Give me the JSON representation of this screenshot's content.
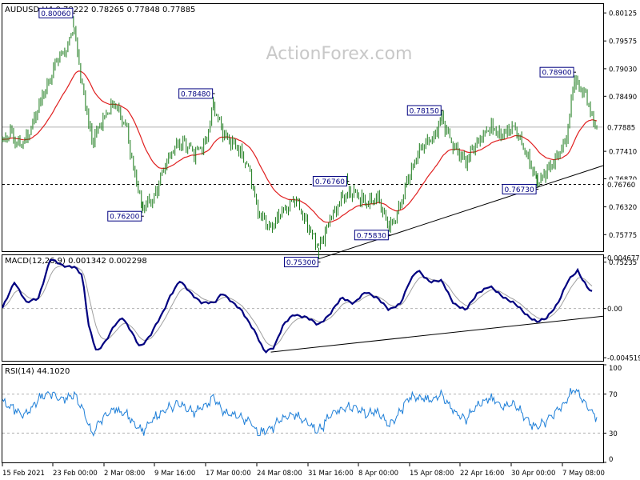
{
  "watermark": "ActionForex.com",
  "chart_data": [
    {
      "type": "candlestick",
      "panel": "price",
      "header": "AUDUSD,H4  0.78222 0.78265 0.77848 0.77885",
      "symbol": "AUDUSD",
      "timeframe": "H4",
      "ohlc_last": {
        "open": 0.78222,
        "high": 0.78265,
        "low": 0.77848,
        "close": 0.77885
      },
      "ylim": [
        0.7545,
        0.803
      ],
      "y_ticks": [
        "0.80125",
        "0.79575",
        "0.79030",
        "0.78490",
        "0.77410",
        "0.76870",
        "0.76320",
        "0.75775",
        "0.75235"
      ],
      "current_price": {
        "value": 0.77885,
        "label": "0.77885"
      },
      "support_level": {
        "value": 0.7676,
        "label": "0.76760"
      },
      "x_labels": [
        "15 Feb 2021",
        "23 Feb 00:00",
        "2 Mar 08:00",
        "9 Mar 16:00",
        "17 Mar 00:00",
        "24 Mar 08:00",
        "31 Mar 16:00",
        "8 Apr 00:00",
        "15 Apr 08:00",
        "22 Apr 16:00",
        "30 Apr 00:00",
        "7 May 08:00"
      ],
      "annotations": [
        {
          "label": "0.80060",
          "value": 0.8006,
          "bar": 89
        },
        {
          "label": "0.78480",
          "value": 0.7848,
          "bar": 264
        },
        {
          "label": "0.76200",
          "value": 0.762,
          "bar": 175
        },
        {
          "label": "0.76760",
          "value": 0.7676,
          "bar": 432
        },
        {
          "label": "0.78150",
          "value": 0.7815,
          "bar": 550
        },
        {
          "label": "0.75830",
          "value": 0.7583,
          "bar": 484
        },
        {
          "label": "0.75300",
          "value": 0.753,
          "bar": 396
        },
        {
          "label": "0.76730",
          "value": 0.7673,
          "bar": 669
        },
        {
          "label": "0.78900",
          "value": 0.789,
          "bar": 716
        }
      ],
      "trendline": {
        "from": {
          "bar": 396,
          "value": 0.753
        },
        "to": {
          "bar": 752,
          "value": 0.7713
        }
      },
      "ma_line": {
        "color": "#e02020"
      },
      "anchors": [
        [
          0,
          0.776
        ],
        [
          10,
          0.778
        ],
        [
          22,
          0.775
        ],
        [
          32,
          0.777
        ],
        [
          48,
          0.784
        ],
        [
          58,
          0.788
        ],
        [
          68,
          0.792
        ],
        [
          80,
          0.794
        ],
        [
          89,
          0.799
        ],
        [
          100,
          0.787
        ],
        [
          112,
          0.776
        ],
        [
          125,
          0.78
        ],
        [
          140,
          0.7835
        ],
        [
          155,
          0.779
        ],
        [
          165,
          0.77
        ],
        [
          175,
          0.763
        ],
        [
          190,
          0.765
        ],
        [
          205,
          0.772
        ],
        [
          220,
          0.776
        ],
        [
          240,
          0.774
        ],
        [
          255,
          0.776
        ],
        [
          264,
          0.783
        ],
        [
          278,
          0.777
        ],
        [
          295,
          0.775
        ],
        [
          310,
          0.77
        ],
        [
          320,
          0.762
        ],
        [
          335,
          0.759
        ],
        [
          350,
          0.762
        ],
        [
          365,
          0.765
        ],
        [
          380,
          0.76
        ],
        [
          396,
          0.755
        ],
        [
          410,
          0.761
        ],
        [
          425,
          0.765
        ],
        [
          440,
          0.766
        ],
        [
          455,
          0.764
        ],
        [
          470,
          0.765
        ],
        [
          484,
          0.759
        ],
        [
          495,
          0.762
        ],
        [
          510,
          0.77
        ],
        [
          525,
          0.775
        ],
        [
          540,
          0.777
        ],
        [
          550,
          0.7805
        ],
        [
          565,
          0.775
        ],
        [
          580,
          0.772
        ],
        [
          595,
          0.776
        ],
        [
          610,
          0.779
        ],
        [
          625,
          0.777
        ],
        [
          640,
          0.779
        ],
        [
          655,
          0.774
        ],
        [
          669,
          0.768
        ],
        [
          690,
          0.772
        ],
        [
          705,
          0.776
        ],
        [
          716,
          0.788
        ],
        [
          730,
          0.785
        ],
        [
          740,
          0.78
        ],
        [
          745,
          0.7788
        ]
      ]
    },
    {
      "type": "line",
      "panel": "macd",
      "header": "MACD(12,26,9) 0.001342 0.002298",
      "values_last": {
        "macd": 0.001342,
        "signal": 0.002298
      },
      "ylim": [
        -0.0048,
        0.0049
      ],
      "y_ticks": [
        "0.004677",
        "0.00",
        "-0.004519"
      ],
      "zero_label": "0.00",
      "trendline": {
        "from": {
          "bar": 336,
          "value": -0.004
        },
        "to": {
          "bar": 752,
          "value": -0.0007
        }
      },
      "series_colors": {
        "macd": "#000080",
        "signal": "#a0a0a0"
      },
      "anchors": [
        [
          0,
          0.0
        ],
        [
          15,
          0.0025
        ],
        [
          30,
          0.0005
        ],
        [
          45,
          0.001
        ],
        [
          60,
          0.0045
        ],
        [
          75,
          0.004
        ],
        [
          90,
          0.0038
        ],
        [
          100,
          0.003
        ],
        [
          108,
          -0.0015
        ],
        [
          118,
          -0.004
        ],
        [
          130,
          -0.003
        ],
        [
          140,
          -0.0015
        ],
        [
          150,
          -0.0008
        ],
        [
          160,
          -0.002
        ],
        [
          172,
          -0.0035
        ],
        [
          185,
          -0.0025
        ],
        [
          200,
          -0.0005
        ],
        [
          210,
          0.0012
        ],
        [
          222,
          0.0025
        ],
        [
          235,
          0.0015
        ],
        [
          250,
          0.0005
        ],
        [
          265,
          0.0005
        ],
        [
          275,
          0.0015
        ],
        [
          288,
          0.0005
        ],
        [
          300,
          -0.0002
        ],
        [
          315,
          -0.002
        ],
        [
          328,
          -0.004
        ],
        [
          340,
          -0.0035
        ],
        [
          352,
          -0.0015
        ],
        [
          365,
          -0.0005
        ],
        [
          380,
          -0.0008
        ],
        [
          395,
          -0.0015
        ],
        [
          410,
          -0.0005
        ],
        [
          425,
          0.001
        ],
        [
          440,
          0.0005
        ],
        [
          455,
          0.0015
        ],
        [
          470,
          0.001
        ],
        [
          484,
          -0.0002
        ],
        [
          498,
          0.0005
        ],
        [
          510,
          0.0025
        ],
        [
          520,
          0.0035
        ],
        [
          535,
          0.0025
        ],
        [
          550,
          0.0025
        ],
        [
          565,
          0.0005
        ],
        [
          580,
          -0.0002
        ],
        [
          595,
          0.0015
        ],
        [
          610,
          0.002
        ],
        [
          625,
          0.0012
        ],
        [
          640,
          0.0005
        ],
        [
          655,
          -0.0005
        ],
        [
          669,
          -0.0012
        ],
        [
          680,
          -0.001
        ],
        [
          695,
          0.0005
        ],
        [
          708,
          0.0025
        ],
        [
          720,
          0.0035
        ],
        [
          732,
          0.002
        ],
        [
          740,
          0.0013
        ]
      ]
    },
    {
      "type": "line",
      "panel": "rsi",
      "header": "RSI(14) 44.1020",
      "value_last": 44.102,
      "ylim": [
        0,
        100
      ],
      "y_ticks": [
        "100",
        "70",
        "30",
        "0"
      ],
      "levels": [
        70,
        30
      ],
      "series_colors": {
        "rsi": "#1e7fd8"
      },
      "anchors": [
        [
          0,
          62
        ],
        [
          15,
          55
        ],
        [
          30,
          48
        ],
        [
          45,
          65
        ],
        [
          60,
          72
        ],
        [
          75,
          64
        ],
        [
          90,
          70
        ],
        [
          100,
          55
        ],
        [
          112,
          30
        ],
        [
          125,
          45
        ],
        [
          140,
          55
        ],
        [
          155,
          50
        ],
        [
          165,
          40
        ],
        [
          175,
          32
        ],
        [
          190,
          45
        ],
        [
          205,
          55
        ],
        [
          220,
          60
        ],
        [
          240,
          52
        ],
        [
          255,
          58
        ],
        [
          264,
          68
        ],
        [
          278,
          50
        ],
        [
          295,
          48
        ],
        [
          310,
          42
        ],
        [
          320,
          30
        ],
        [
          335,
          34
        ],
        [
          350,
          45
        ],
        [
          365,
          50
        ],
        [
          380,
          42
        ],
        [
          396,
          32
        ],
        [
          410,
          48
        ],
        [
          425,
          55
        ],
        [
          440,
          56
        ],
        [
          455,
          50
        ],
        [
          470,
          52
        ],
        [
          484,
          38
        ],
        [
          495,
          48
        ],
        [
          510,
          68
        ],
        [
          525,
          66
        ],
        [
          540,
          64
        ],
        [
          550,
          70
        ],
        [
          565,
          52
        ],
        [
          580,
          44
        ],
        [
          595,
          58
        ],
        [
          610,
          66
        ],
        [
          625,
          58
        ],
        [
          640,
          60
        ],
        [
          655,
          45
        ],
        [
          669,
          35
        ],
        [
          690,
          50
        ],
        [
          705,
          62
        ],
        [
          716,
          76
        ],
        [
          730,
          60
        ],
        [
          740,
          48
        ],
        [
          745,
          44
        ]
      ]
    }
  ]
}
